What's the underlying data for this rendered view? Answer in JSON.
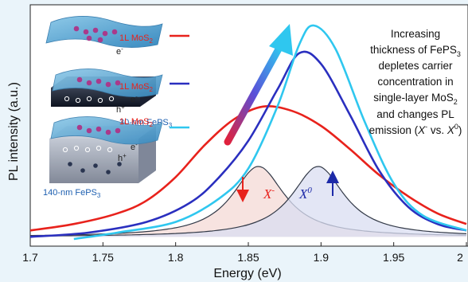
{
  "chart_data": {
    "type": "line",
    "xlabel": "Energy (eV)",
    "ylabel": "PL intensity (a.u.)",
    "xlim": [
      1.7,
      2.0
    ],
    "x_ticks": [
      "1.7",
      "1.75",
      "1.8",
      "1.85",
      "1.9",
      "1.95",
      "2"
    ],
    "grid": false,
    "series": [
      {
        "legend": "1L MoS2",
        "color": "#e8221c",
        "points": [
          [
            1.7,
            0.04
          ],
          [
            1.73,
            0.07
          ],
          [
            1.76,
            0.12
          ],
          [
            1.78,
            0.18
          ],
          [
            1.8,
            0.29
          ],
          [
            1.82,
            0.44
          ],
          [
            1.84,
            0.56
          ],
          [
            1.86,
            0.62
          ],
          [
            1.88,
            0.6
          ],
          [
            1.9,
            0.53
          ],
          [
            1.92,
            0.42
          ],
          [
            1.94,
            0.3
          ],
          [
            1.96,
            0.2
          ],
          [
            1.98,
            0.12
          ],
          [
            2.0,
            0.07
          ]
        ]
      },
      {
        "legend": "1L MoS2 / 30-nm FePS3",
        "color": "#2a2fbf",
        "points": [
          [
            1.7,
            0.01
          ],
          [
            1.74,
            0.03
          ],
          [
            1.78,
            0.08
          ],
          [
            1.81,
            0.17
          ],
          [
            1.83,
            0.29
          ],
          [
            1.85,
            0.46
          ],
          [
            1.87,
            0.7
          ],
          [
            1.885,
            0.87
          ],
          [
            1.9,
            0.82
          ],
          [
            1.92,
            0.58
          ],
          [
            1.94,
            0.32
          ],
          [
            1.96,
            0.15
          ],
          [
            1.98,
            0.07
          ],
          [
            2.0,
            0.04
          ]
        ]
      },
      {
        "legend": "1L MoS2 / 140-nm FePS3",
        "color": "#2fc7ef",
        "points": [
          [
            1.73,
            0.0
          ],
          [
            1.76,
            0.03
          ],
          [
            1.8,
            0.08
          ],
          [
            1.83,
            0.19
          ],
          [
            1.85,
            0.33
          ],
          [
            1.87,
            0.62
          ],
          [
            1.885,
            0.91
          ],
          [
            1.895,
            1.0
          ],
          [
            1.91,
            0.89
          ],
          [
            1.93,
            0.55
          ],
          [
            1.95,
            0.26
          ],
          [
            1.97,
            0.11
          ],
          [
            2.0,
            0.04
          ]
        ]
      }
    ],
    "components": [
      {
        "label": "X-",
        "label_sup": "-",
        "peak_x": 1.857,
        "peak_y": 0.33,
        "arrow": "down"
      },
      {
        "label": "X0",
        "label_sup": "0",
        "peak_x": 1.898,
        "peak_y": 0.33,
        "arrow": "up"
      }
    ],
    "annotation": {
      "lines": [
        "Increasing",
        "thickness of FePS3",
        "depletes carrier",
        "concentration in",
        "single-layer MoS2",
        "and changes PL",
        "emission (X- vs. X0)"
      ]
    },
    "insets": [
      {
        "layer": "1L MoS2",
        "electron": "e-",
        "hole": "",
        "substrate": ""
      },
      {
        "layer": "1L MoS2",
        "electron": "e-",
        "hole": "h+",
        "substrate": "30-nm FePS3"
      },
      {
        "layer": "1L MoS2",
        "electron": "e-",
        "hole": "h+",
        "substrate": "140-nm FePS3"
      }
    ]
  }
}
